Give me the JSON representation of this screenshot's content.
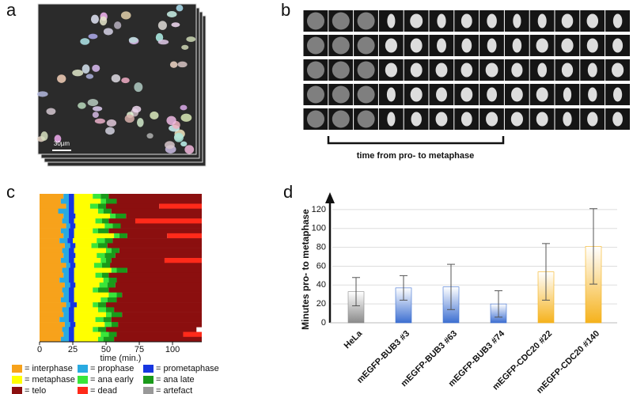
{
  "panel_labels": [
    "a",
    "b",
    "c",
    "d"
  ],
  "scale_bar": "30µm",
  "bracket_label": "time from pro- to metaphase",
  "chart_data": [
    {
      "type": "stacked-hbar",
      "xlabel": "time (min.)",
      "xlim": [
        0,
        122
      ],
      "xticks": [
        0,
        25,
        50,
        75,
        100
      ],
      "categories": [
        null,
        null,
        null,
        null,
        null,
        null,
        null,
        null,
        null,
        null,
        null,
        null,
        null,
        null,
        null,
        null,
        null,
        null,
        null,
        null,
        null,
        null,
        null,
        null,
        null,
        null,
        null,
        null,
        null,
        null
      ],
      "series": [
        {
          "name": "= interphase",
          "color": "#f7a21b",
          "values": [
            18,
            16,
            20,
            14,
            18,
            17,
            20,
            16,
            18,
            15,
            19,
            17,
            18,
            16,
            20,
            17,
            18,
            15,
            19,
            17,
            18,
            16,
            20,
            17,
            18,
            15,
            19,
            17,
            18,
            16
          ]
        },
        {
          "name": "= prophase",
          "color": "#29aae1",
          "values": [
            4,
            6,
            2,
            8,
            4,
            5,
            3,
            6,
            4,
            6,
            4,
            5,
            4,
            6,
            3,
            5,
            4,
            7,
            4,
            5,
            4,
            6,
            3,
            5,
            4,
            7,
            4,
            5,
            4,
            6
          ]
        },
        {
          "name": "= prometaphase",
          "color": "#1736e0",
          "values": [
            4,
            4,
            4,
            4,
            5,
            4,
            4,
            4,
            4,
            4,
            4,
            4,
            5,
            4,
            4,
            4,
            4,
            4,
            4,
            4,
            4,
            4,
            5,
            4,
            4,
            4,
            4,
            4,
            4,
            4
          ]
        },
        {
          "name": "= metaphase",
          "color": "#ffff00",
          "values": [
            14,
            20,
            12,
            18,
            26,
            16,
            22,
            14,
            30,
            18,
            12,
            24,
            16,
            20,
            14,
            28,
            16,
            22,
            18,
            14,
            26,
            20,
            12,
            18,
            24,
            16,
            22,
            14,
            20,
            18
          ]
        },
        {
          "name": "= ana early",
          "color": "#39e639",
          "values": [
            6,
            4,
            6,
            4,
            4,
            5,
            6,
            4,
            4,
            6,
            5,
            4,
            6,
            4,
            6,
            4,
            5,
            4,
            6,
            4,
            6,
            5,
            4,
            6,
            4,
            6,
            5,
            4,
            6,
            4
          ]
        },
        {
          "name": "= ana late",
          "color": "#1a9a1a",
          "values": [
            6,
            8,
            6,
            6,
            8,
            5,
            6,
            8,
            6,
            6,
            7,
            6,
            8,
            4,
            6,
            8,
            5,
            6,
            6,
            8,
            4,
            7,
            6,
            6,
            8,
            6,
            5,
            6,
            6,
            8
          ]
        },
        {
          "name": "= telo",
          "color": "#8b0f0f",
          "values": [
            70,
            64,
            40,
            68,
            57,
            20,
            61,
            70,
            30,
            67,
            71,
            62,
            65,
            40,
            69,
            56,
            70,
            64,
            65,
            70,
            60,
            64,
            72,
            66,
            60,
            68,
            63,
            68,
            50,
            66
          ]
        },
        {
          "name": "= dead",
          "color": "#ff2a1a",
          "values": [
            0,
            0,
            32,
            0,
            0,
            50,
            0,
            0,
            26,
            0,
            0,
            0,
            0,
            28,
            0,
            0,
            0,
            0,
            0,
            0,
            0,
            0,
            0,
            0,
            0,
            0,
            0,
            0,
            14,
            0
          ]
        },
        {
          "name": "= artefact",
          "color": "#999999",
          "values": [
            0,
            0,
            0,
            0,
            0,
            0,
            0,
            0,
            0,
            0,
            0,
            0,
            0,
            0,
            0,
            0,
            0,
            0,
            0,
            0,
            0,
            0,
            0,
            0,
            0,
            0,
            0,
            0,
            0,
            0
          ]
        }
      ]
    },
    {
      "type": "bar",
      "ylabel": "Minutes pro- to metaphase",
      "categories": [
        "HeLa",
        "mEGFP-BUB3  #3",
        "mEGFP-BUB3  #63",
        "mEGFP-BUB3  #74",
        "mEGFP-CDC20  #22",
        "mEGFP-CDC20  #140"
      ],
      "values": [
        33,
        37,
        38,
        20,
        54,
        81
      ],
      "errors": [
        15,
        13,
        24,
        14,
        30,
        40
      ],
      "colors": [
        "#8a8a8a",
        "#3d6fd1",
        "#3d6fd1",
        "#3d6fd1",
        "#f5b21c",
        "#f5b21c"
      ],
      "ylim": [
        0,
        130
      ],
      "yticks": [
        0,
        20,
        40,
        60,
        80,
        100,
        120
      ],
      "grid": true
    }
  ]
}
